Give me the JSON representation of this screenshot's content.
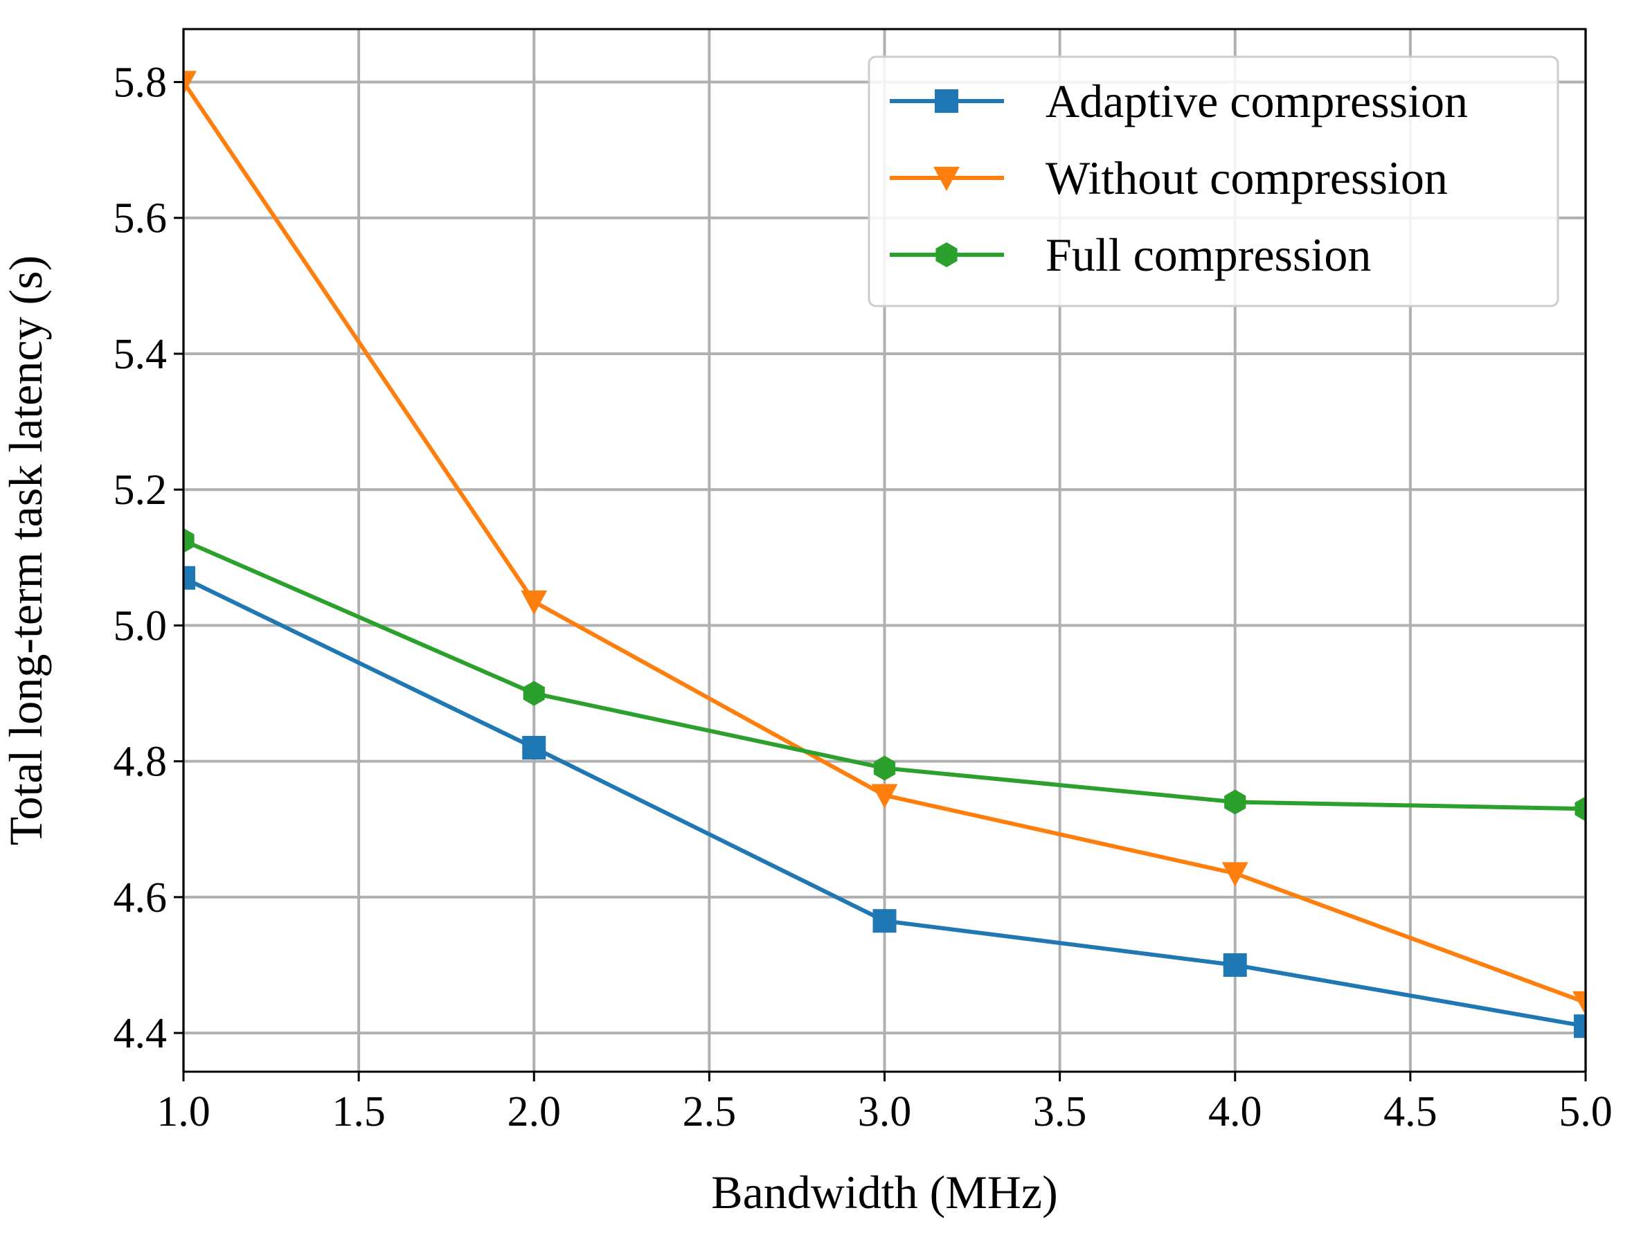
{
  "chart_data": {
    "type": "line",
    "title": "",
    "xlabel": "Bandwidth (MHz)",
    "ylabel": "Total long-term task latency (s)",
    "xlim": [
      1.0,
      5.0
    ],
    "ylim": [
      4.343,
      5.878
    ],
    "xticks": [
      1.0,
      1.5,
      2.0,
      2.5,
      3.0,
      3.5,
      4.0,
      4.5,
      5.0
    ],
    "xtick_labels": [
      "1.0",
      "1.5",
      "2.0",
      "2.5",
      "3.0",
      "3.5",
      "4.0",
      "4.5",
      "5.0"
    ],
    "yticks": [
      4.4,
      4.6,
      4.8,
      5.0,
      5.2,
      5.4,
      5.6,
      5.8
    ],
    "ytick_labels": [
      "4.4",
      "4.6",
      "4.8",
      "5.0",
      "5.2",
      "5.4",
      "5.6",
      "5.8"
    ],
    "grid": true,
    "legend_position": "top-right",
    "x": [
      1.0,
      2.0,
      3.0,
      4.0,
      5.0
    ],
    "series": [
      {
        "name": "Adaptive compression",
        "color": "#1f77b4",
        "marker": "square",
        "values": [
          5.07,
          4.82,
          4.565,
          4.5,
          4.41
        ]
      },
      {
        "name": "Without compression",
        "color": "#ff7f0e",
        "marker": "triangle-down",
        "values": [
          5.8,
          5.035,
          4.75,
          4.635,
          4.445
        ]
      },
      {
        "name": "Full compression",
        "color": "#2ca02c",
        "marker": "hexagon",
        "values": [
          5.125,
          4.9,
          4.79,
          4.74,
          4.73
        ]
      }
    ]
  }
}
